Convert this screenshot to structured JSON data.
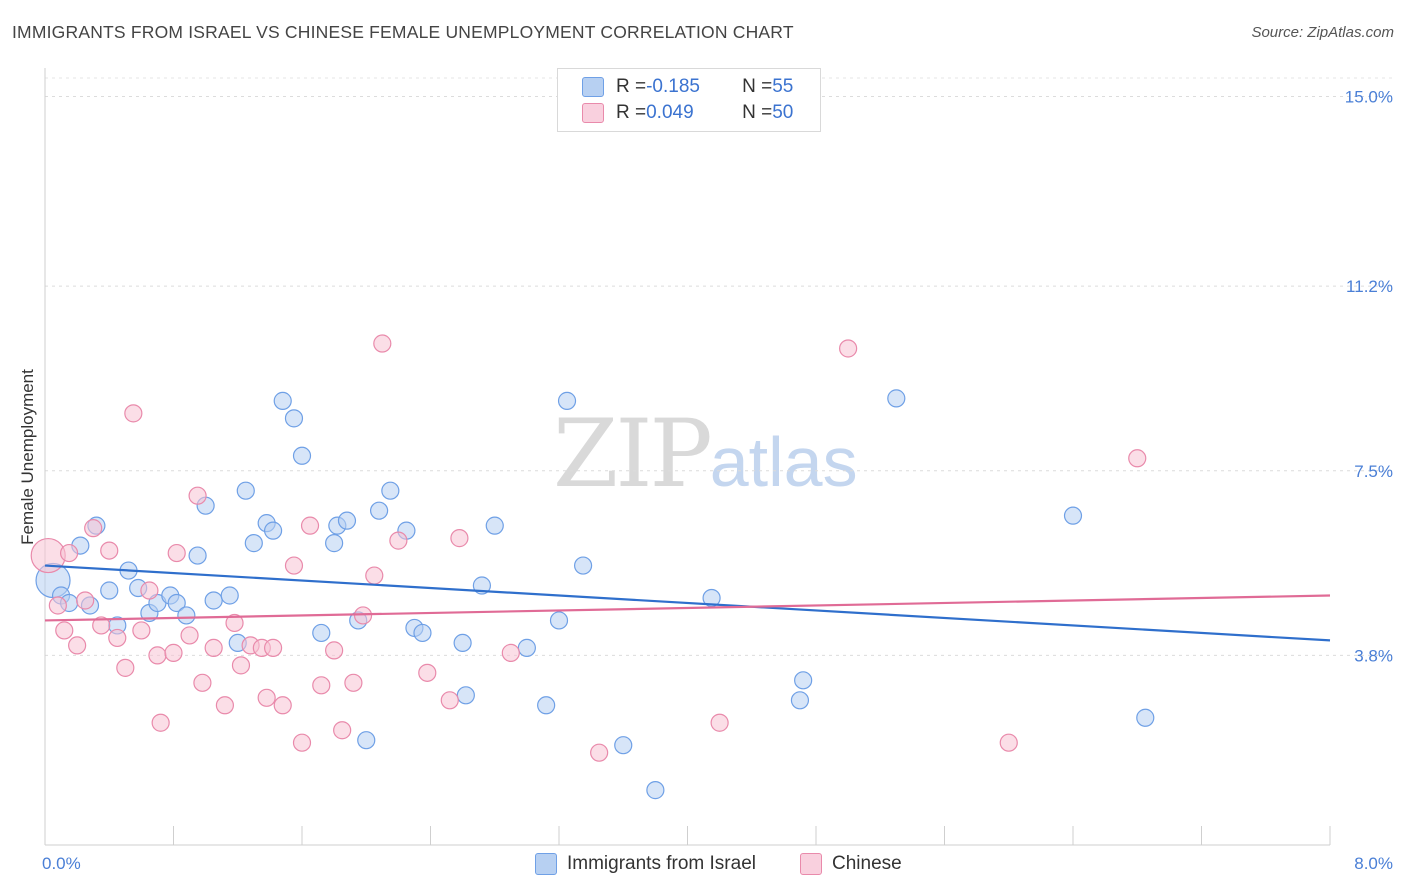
{
  "header": {
    "title": "IMMIGRANTS FROM ISRAEL VS CHINESE FEMALE UNEMPLOYMENT CORRELATION CHART",
    "source": "Source: ZipAtlas.com"
  },
  "watermark": {
    "zip": "ZIP",
    "atlas": "atlas"
  },
  "legend": {
    "rows": [
      {
        "r_label": "R = ",
        "r_value": "-0.185",
        "n_label": "N = ",
        "n_value": "55",
        "color": "#a8c6f0"
      },
      {
        "r_label": "R = ",
        "r_value": "0.049",
        "n_label": "N = ",
        "n_value": "50",
        "color": "#f5b8cc"
      }
    ]
  },
  "bottom_legend": {
    "series1": "Immigrants from Israel",
    "series2": "Chinese"
  },
  "chart_data": {
    "type": "scatter",
    "title": "IMMIGRANTS FROM ISRAEL VS CHINESE FEMALE UNEMPLOYMENT CORRELATION CHART",
    "xlabel": "",
    "ylabel": "Female Unemployment",
    "xlim": [
      0,
      8.0
    ],
    "ylim": [
      0,
      15.0
    ],
    "x_tick_labels": [
      "0.0%",
      "8.0%"
    ],
    "y_ticks": [
      3.8,
      7.5,
      11.2,
      15.0
    ],
    "y_tick_labels": [
      "3.8%",
      "7.5%",
      "11.2%",
      "15.0%"
    ],
    "grid": "horizontal dashed",
    "legend_position": "top-center",
    "series": [
      {
        "name": "Immigrants from Israel",
        "color": "#6fa0e6",
        "fill": "#b7d0f2",
        "trend": {
          "x": [
            0,
            8.0
          ],
          "y": [
            5.6,
            4.1
          ]
        },
        "points": [
          [
            0.05,
            5.3
          ],
          [
            0.1,
            5.0
          ],
          [
            0.15,
            4.85
          ],
          [
            0.22,
            6.0
          ],
          [
            0.28,
            4.8
          ],
          [
            0.32,
            6.4
          ],
          [
            0.4,
            5.1
          ],
          [
            0.45,
            4.4
          ],
          [
            0.52,
            5.5
          ],
          [
            0.58,
            5.15
          ],
          [
            0.65,
            4.65
          ],
          [
            0.7,
            4.85
          ],
          [
            0.78,
            5.0
          ],
          [
            0.82,
            4.85
          ],
          [
            0.88,
            4.6
          ],
          [
            0.95,
            5.8
          ],
          [
            1.0,
            6.8
          ],
          [
            1.05,
            4.9
          ],
          [
            1.15,
            5.0
          ],
          [
            1.2,
            4.05
          ],
          [
            1.25,
            7.1
          ],
          [
            1.3,
            6.05
          ],
          [
            1.38,
            6.45
          ],
          [
            1.42,
            6.3
          ],
          [
            1.48,
            8.9
          ],
          [
            1.55,
            8.55
          ],
          [
            1.6,
            7.8
          ],
          [
            1.72,
            4.25
          ],
          [
            1.8,
            6.05
          ],
          [
            1.82,
            6.4
          ],
          [
            1.88,
            6.5
          ],
          [
            1.95,
            4.5
          ],
          [
            2.0,
            2.1
          ],
          [
            2.08,
            6.7
          ],
          [
            2.15,
            7.1
          ],
          [
            2.25,
            6.3
          ],
          [
            2.3,
            4.35
          ],
          [
            2.35,
            4.25
          ],
          [
            2.6,
            4.05
          ],
          [
            2.62,
            3.0
          ],
          [
            2.8,
            6.4
          ],
          [
            2.72,
            5.2
          ],
          [
            3.0,
            3.95
          ],
          [
            3.12,
            2.8
          ],
          [
            3.2,
            4.5
          ],
          [
            3.25,
            8.9
          ],
          [
            3.35,
            5.6
          ],
          [
            3.6,
            2.0
          ],
          [
            3.8,
            1.1
          ],
          [
            4.15,
            4.95
          ],
          [
            4.7,
            2.9
          ],
          [
            4.72,
            3.3
          ],
          [
            5.3,
            8.95
          ],
          [
            6.4,
            6.6
          ],
          [
            6.85,
            2.55
          ]
        ]
      },
      {
        "name": "Chinese",
        "color": "#e98aab",
        "fill": "#f7c3d4",
        "trend": {
          "x": [
            0,
            8.0
          ],
          "y": [
            4.5,
            5.0
          ]
        },
        "points": [
          [
            0.02,
            5.8
          ],
          [
            0.08,
            4.8
          ],
          [
            0.12,
            4.3
          ],
          [
            0.15,
            5.85
          ],
          [
            0.2,
            4.0
          ],
          [
            0.25,
            4.9
          ],
          [
            0.3,
            6.35
          ],
          [
            0.35,
            4.4
          ],
          [
            0.4,
            5.9
          ],
          [
            0.45,
            4.15
          ],
          [
            0.5,
            3.55
          ],
          [
            0.55,
            8.65
          ],
          [
            0.6,
            4.3
          ],
          [
            0.65,
            5.1
          ],
          [
            0.7,
            3.8
          ],
          [
            0.72,
            2.45
          ],
          [
            0.8,
            3.85
          ],
          [
            0.82,
            5.85
          ],
          [
            0.9,
            4.2
          ],
          [
            0.95,
            7.0
          ],
          [
            0.98,
            3.25
          ],
          [
            1.05,
            3.95
          ],
          [
            1.12,
            2.8
          ],
          [
            1.18,
            4.45
          ],
          [
            1.22,
            3.6
          ],
          [
            1.28,
            4.0
          ],
          [
            1.35,
            3.95
          ],
          [
            1.38,
            2.95
          ],
          [
            1.42,
            3.95
          ],
          [
            1.48,
            2.8
          ],
          [
            1.55,
            5.6
          ],
          [
            1.6,
            2.05
          ],
          [
            1.65,
            6.4
          ],
          [
            1.72,
            3.2
          ],
          [
            1.8,
            3.9
          ],
          [
            1.85,
            2.3
          ],
          [
            1.92,
            3.25
          ],
          [
            1.98,
            4.6
          ],
          [
            2.05,
            5.4
          ],
          [
            2.1,
            10.05
          ],
          [
            2.2,
            6.1
          ],
          [
            2.38,
            3.45
          ],
          [
            2.52,
            2.9
          ],
          [
            2.58,
            6.15
          ],
          [
            2.9,
            3.85
          ],
          [
            3.45,
            1.85
          ],
          [
            4.2,
            2.45
          ],
          [
            5.0,
            9.95
          ],
          [
            6.0,
            2.05
          ],
          [
            6.8,
            7.75
          ]
        ]
      }
    ]
  }
}
